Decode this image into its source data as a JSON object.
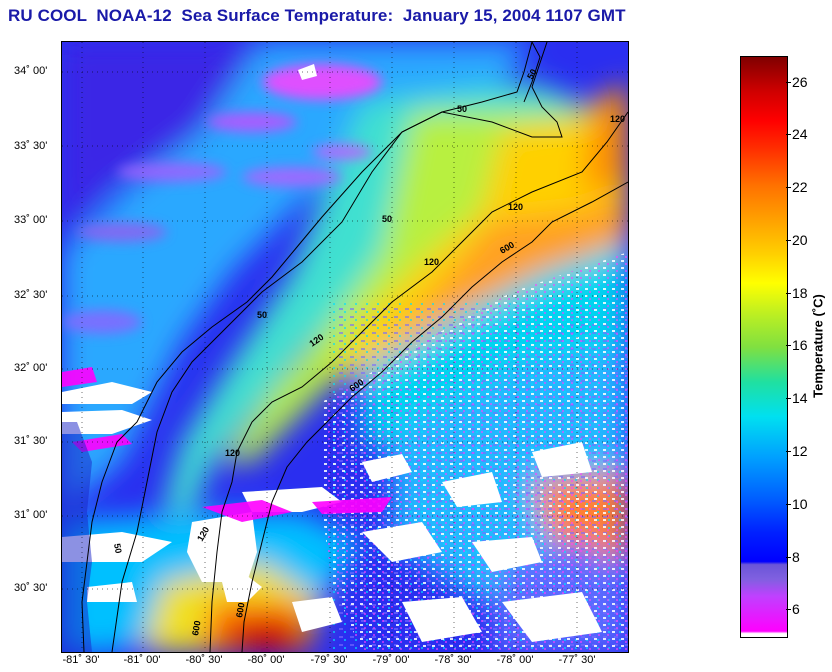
{
  "title": "RU COOL  NOAA-12  Sea Surface Temperature:  January 15, 2004 1107 GMT",
  "latitude_ticks": [
    "34˚ 00'",
    "33˚ 30'",
    "33˚ 00'",
    "32˚ 30'",
    "32˚ 00'",
    "31˚ 30'",
    "31˚ 00'",
    "30˚ 30'"
  ],
  "longitude_ticks": [
    "-81˚ 30'",
    "-81˚ 00'",
    "-80˚ 30'",
    "-80˚ 00'",
    "-79˚ 30'",
    "-79˚ 00'",
    "-78˚ 30'",
    "-78˚ 00'",
    "-77˚ 30'"
  ],
  "contour_labels": [
    "50",
    "50",
    "50",
    "50",
    "50",
    "120",
    "120",
    "120",
    "120",
    "120",
    "120",
    "600",
    "600",
    "600",
    "600"
  ],
  "colorbar": {
    "label": "Temperature (˚C)",
    "ticks": [
      "26",
      "24",
      "22",
      "20",
      "18",
      "16",
      "14",
      "12",
      "10",
      "8",
      "6"
    ],
    "range": [
      5,
      27
    ]
  }
}
